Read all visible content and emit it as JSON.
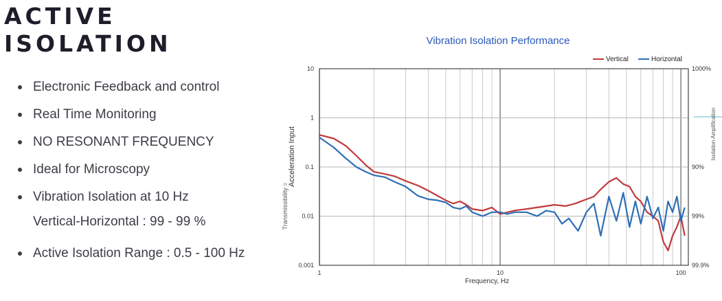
{
  "heading": {
    "line1": "ACTIVE",
    "line2": "ISOLATION"
  },
  "features": [
    {
      "text": "Electronic Feedback and control"
    },
    {
      "text": "Real Time Monitoring"
    },
    {
      "text": "NO RESONANT FREQUENCY"
    },
    {
      "text": "Ideal for Microscopy"
    },
    {
      "text": "Vibration Isolation at 10 Hz",
      "sub": "Vertical-Horizontal : 99 - 99 %"
    },
    {
      "text": "Active Isolation Range : 0.5 - 100 Hz"
    }
  ],
  "chart_data": {
    "type": "line",
    "title": "Vibration Isolation Performance",
    "xlabel": "Frequency, Hz",
    "ylabel": "Acceleration Input",
    "ylabel_secondary": "Transmissibility =",
    "right_axis_label": "Isolation  Amplification",
    "x_scale": "log",
    "y_scale": "log",
    "xlim": [
      1,
      110
    ],
    "ylim": [
      0.001,
      10
    ],
    "x_ticks": [
      {
        "value": 1,
        "label": "1"
      },
      {
        "value": 10,
        "label": "10"
      },
      {
        "value": 100,
        "label": "100"
      }
    ],
    "y_ticks": [
      {
        "value": 10,
        "label": "10"
      },
      {
        "value": 1,
        "label": "1"
      },
      {
        "value": 0.1,
        "label": "0.1"
      },
      {
        "value": 0.01,
        "label": "0.01"
      },
      {
        "value": 0.001,
        "label": "0.001"
      }
    ],
    "right_ticks": [
      {
        "value": 10,
        "label": "1000%"
      },
      {
        "value": 0.1,
        "label": "90%"
      },
      {
        "value": 0.01,
        "label": "99%"
      },
      {
        "value": 0.001,
        "label": "99.9%"
      }
    ],
    "grid": true,
    "legend_position": "top-right",
    "series": [
      {
        "name": "Vertical",
        "color": "#c0393b",
        "x": [
          1,
          1.2,
          1.4,
          1.6,
          1.8,
          2,
          2.3,
          2.6,
          3,
          3.5,
          4,
          4.5,
          5,
          5.5,
          6,
          6.5,
          7,
          8,
          9,
          10,
          11,
          12,
          14,
          16,
          18,
          20,
          23,
          26,
          30,
          33,
          36,
          40,
          44,
          48,
          52,
          56,
          60,
          65,
          70,
          75,
          80,
          85,
          90,
          95,
          100,
          105
        ],
        "y": [
          0.45,
          0.38,
          0.27,
          0.17,
          0.11,
          0.08,
          0.072,
          0.065,
          0.052,
          0.042,
          0.033,
          0.026,
          0.021,
          0.018,
          0.02,
          0.017,
          0.014,
          0.013,
          0.015,
          0.011,
          0.012,
          0.013,
          0.014,
          0.015,
          0.016,
          0.017,
          0.016,
          0.018,
          0.022,
          0.025,
          0.035,
          0.05,
          0.06,
          0.045,
          0.04,
          0.025,
          0.02,
          0.012,
          0.01,
          0.008,
          0.003,
          0.002,
          0.004,
          0.006,
          0.01,
          0.004
        ]
      },
      {
        "name": "Horizontal",
        "color": "#2e6eb5",
        "x": [
          1,
          1.2,
          1.4,
          1.6,
          1.8,
          2,
          2.3,
          2.6,
          3,
          3.5,
          4,
          4.5,
          5,
          5.5,
          6,
          6.5,
          7,
          8,
          9,
          10,
          11,
          12,
          14,
          16,
          18,
          20,
          22,
          24,
          27,
          30,
          33,
          36,
          40,
          44,
          48,
          52,
          56,
          60,
          65,
          70,
          75,
          80,
          85,
          90,
          95,
          100,
          105
        ],
        "y": [
          0.4,
          0.25,
          0.15,
          0.1,
          0.08,
          0.068,
          0.062,
          0.05,
          0.04,
          0.026,
          0.022,
          0.021,
          0.019,
          0.015,
          0.014,
          0.016,
          0.012,
          0.01,
          0.012,
          0.012,
          0.011,
          0.012,
          0.012,
          0.01,
          0.013,
          0.012,
          0.007,
          0.009,
          0.005,
          0.012,
          0.018,
          0.004,
          0.025,
          0.008,
          0.03,
          0.006,
          0.02,
          0.007,
          0.025,
          0.009,
          0.015,
          0.005,
          0.02,
          0.012,
          0.025,
          0.008,
          0.015
        ]
      }
    ]
  }
}
